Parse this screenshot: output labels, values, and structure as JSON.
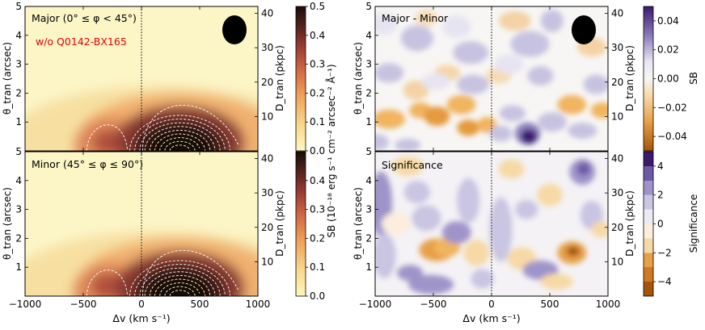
{
  "chart_data": [
    {
      "type": "heatmap",
      "panel": "top-left",
      "title": "Major (0° ≤ φ < 45°)",
      "annotation": "w/o Q0142-BX165",
      "annotation_color": "#e8000b",
      "xlabel": "Δv (km s⁻¹)",
      "ylabel_left": "θ_tran (arcsec)",
      "ylabel_right": "D_tran (pkpc)",
      "xlim": [
        -1000,
        1000
      ],
      "ylim": [
        0,
        5
      ],
      "ylim_right": [
        0,
        42
      ],
      "xticks": [
        "−1000",
        "−500",
        "0",
        "500",
        "1000"
      ],
      "yticks": [
        "1",
        "2",
        "3",
        "4",
        "5"
      ],
      "yticks_right": [
        "10",
        "20",
        "30",
        "40"
      ],
      "vline_x": 0,
      "beam": "top-right",
      "peaks": [
        {
          "x": 330,
          "y": 0.4,
          "sb": 0.5
        },
        {
          "x": -270,
          "y": 0.3,
          "sb": 0.22
        }
      ]
    },
    {
      "type": "heatmap",
      "panel": "bottom-left",
      "title": "Minor (45° ≤ φ ≤ 90°)",
      "xlabel": "Δv (km s⁻¹)",
      "ylabel_left": "θ_tran (arcsec)",
      "ylabel_right": "D_tran (pkpc)",
      "xlim": [
        -1000,
        1000
      ],
      "ylim": [
        0,
        5
      ],
      "xticks": [
        "−1000",
        "−500",
        "0",
        "500",
        "1000"
      ],
      "yticks": [
        "1",
        "2",
        "3",
        "4",
        "5"
      ],
      "yticks_right": [
        "10",
        "20",
        "30",
        "40"
      ],
      "vline_x": 0,
      "colorbar": {
        "label": "SB (10⁻¹⁸ erg s⁻¹ cm⁻² arcsec⁻² Å⁻¹)",
        "range": [
          0.0,
          0.5
        ],
        "ticks": [
          "0.0",
          "0.1",
          "0.2",
          "0.3",
          "0.4"
        ],
        "ticks_top": [
          "0.0",
          "0.1",
          "0.2",
          "0.3",
          "0.4",
          "0.5"
        ],
        "colors": [
          "#fcf7c0",
          "#f9d98a",
          "#f0a15a",
          "#d46b44",
          "#9a3c34",
          "#55231f",
          "#1a0d08"
        ]
      },
      "peaks": [
        {
          "x": 330,
          "y": 0.4,
          "sb": 0.5
        },
        {
          "x": -280,
          "y": 0.35,
          "sb": 0.2
        }
      ]
    },
    {
      "type": "heatmap",
      "panel": "top-right",
      "title": "Major - Minor",
      "xlabel": "Δv (km s⁻¹)",
      "ylabel_left": "θ_tran (arcsec)",
      "ylabel_right": "D_tran (pkpc)",
      "xlim": [
        -1000,
        1000
      ],
      "ylim": [
        0,
        5
      ],
      "xticks": [
        "−1000",
        "−500",
        "0",
        "500",
        "1000"
      ],
      "vline_x": 0,
      "colorbar": {
        "label": "SB",
        "range": [
          -0.05,
          0.05
        ],
        "ticks": [
          "0.04",
          "0.02",
          "0.00",
          "−0.02",
          "−0.04"
        ],
        "colors": [
          "#3b1a6e",
          "#8a7ab8",
          "#e8e6f3",
          "#f7f6f4",
          "#f7d9a6",
          "#e7a047",
          "#a65407"
        ]
      }
    },
    {
      "type": "heatmap",
      "panel": "bottom-right",
      "title": "Significance",
      "xlabel": "Δv (km s⁻¹)",
      "ylabel_left": "θ_tran (arcsec)",
      "ylabel_right": "D_tran (pkpc)",
      "xlim": [
        -1000,
        1000
      ],
      "ylim": [
        0,
        5
      ],
      "xticks": [
        "−1000",
        "−500",
        "0",
        "500",
        "1000"
      ],
      "vline_x": 0,
      "colorbar": {
        "label": "Significance",
        "range": [
          -5,
          5
        ],
        "ticks": [
          "4",
          "2",
          "0",
          "−2",
          "−4"
        ],
        "colors": [
          "#3b1a6e",
          "#8a7ab8",
          "#c9c5e2",
          "#f7f6f4",
          "#f7d9a6",
          "#e7a047",
          "#a65407"
        ]
      }
    }
  ]
}
